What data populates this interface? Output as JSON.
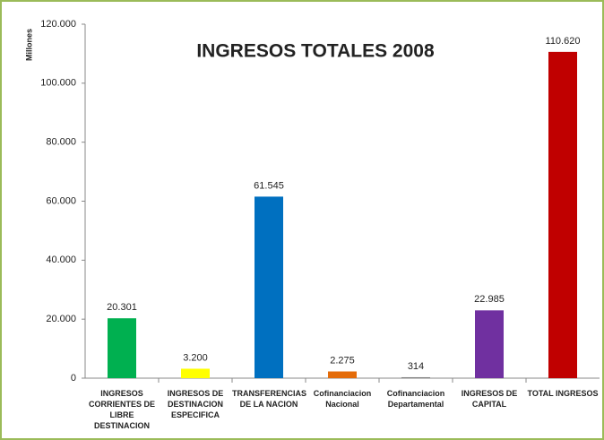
{
  "chart_data": {
    "type": "bar",
    "title": "INGRESOS TOTALES 2008",
    "y_label": "Millones",
    "categories": [
      "INGRESOS CORRIENTES DE LIBRE DESTINACION",
      "INGRESOS DE DESTINACION ESPECIFICA",
      "TRANSFERENCIAS DE LA NACION",
      "Cofinanciacion Nacional",
      "Cofinanciacion Departamental",
      "INGRESOS DE CAPITAL",
      "TOTAL INGRESOS"
    ],
    "values": [
      20301,
      3200,
      61545,
      2275,
      314,
      22985,
      110620
    ],
    "value_labels": [
      "20.301",
      "3.200",
      "61.545",
      "2.275",
      "314",
      "22.985",
      "110.620"
    ],
    "colors": [
      "#00b050",
      "#ffff00",
      "#0070c0",
      "#e46c0a",
      "#7f7f7f",
      "#7030a0",
      "#c00000"
    ],
    "ylim": [
      0,
      120000
    ],
    "yticks": [
      0,
      {
        "value": 20000,
        "label": "20.000"
      },
      {
        "value": 40000,
        "label": "40.000"
      },
      {
        "value": 60000,
        "label": "60.000"
      },
      {
        "value": 80000,
        "label": "80.000"
      },
      {
        "value": 100000,
        "label": "100.000"
      },
      {
        "value": 120000,
        "label": "120.000"
      }
    ],
    "grid": false
  }
}
